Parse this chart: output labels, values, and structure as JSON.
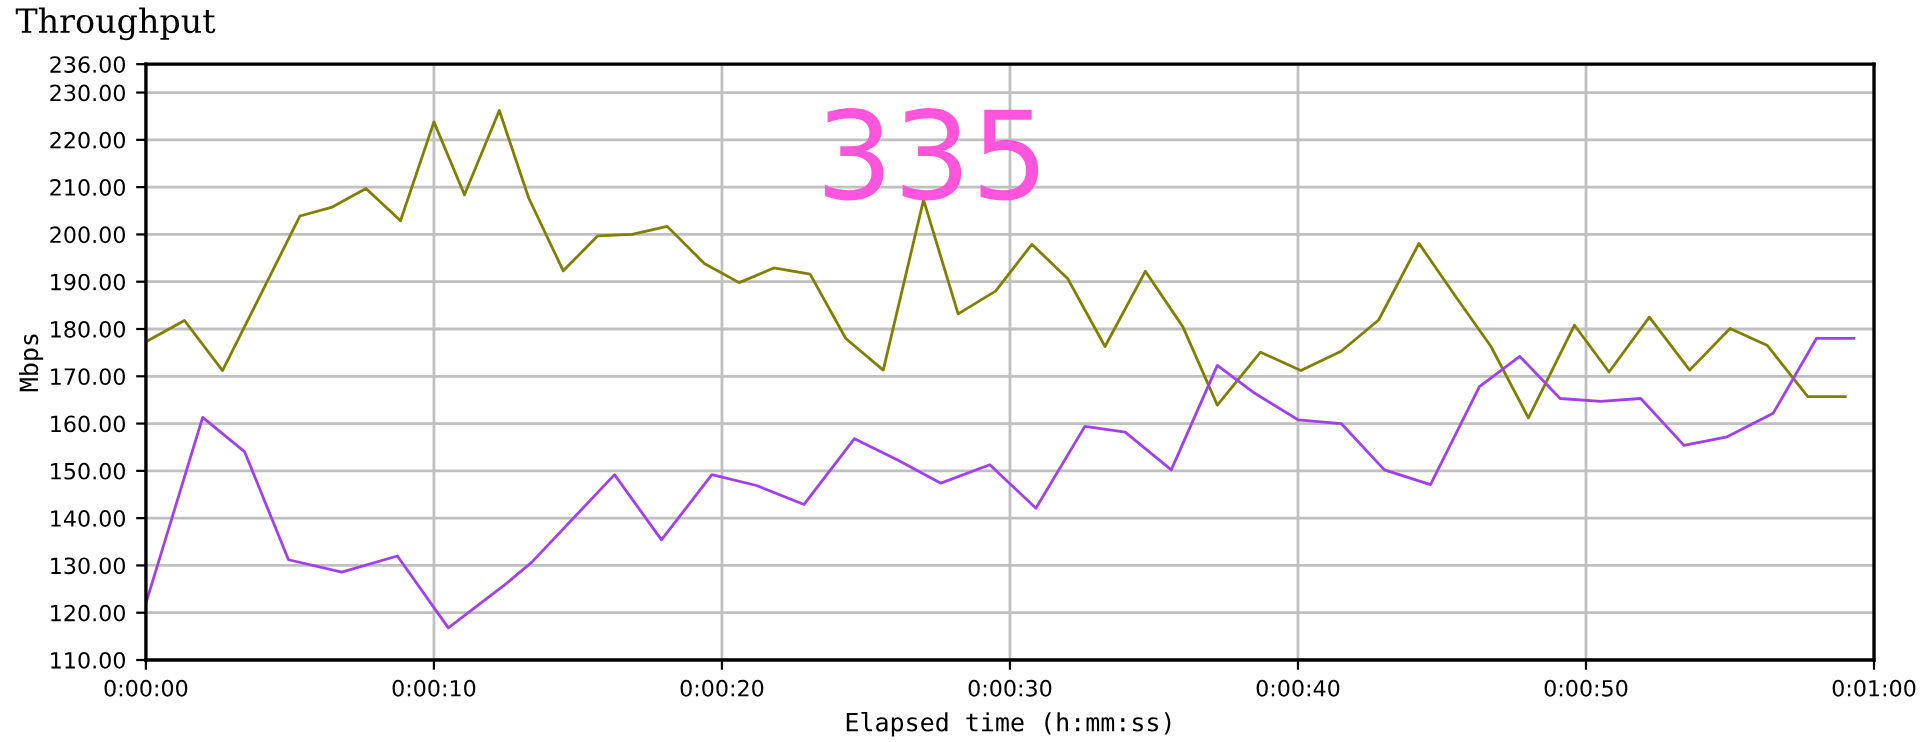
{
  "chart_data": {
    "type": "line",
    "title": "Throughput",
    "xlabel": "Elapsed time (h:mm:ss)",
    "ylabel": "Mbps",
    "annotations": [
      "335"
    ],
    "series": [
      {
        "color": "#808000",
        "x": [
          0,
          1.34,
          2.66,
          5.35,
          6.44,
          7.64,
          8.84,
          10.0,
          11.06,
          12.27,
          13.29,
          14.49,
          15.69,
          16.88,
          18.1,
          19.4,
          20.6,
          21.8,
          23.06,
          24.3,
          25.6,
          27.0,
          28.2,
          29.5,
          30.76,
          32.0,
          33.3,
          34.7,
          36.0,
          37.2,
          38.7,
          40.1,
          41.5,
          42.8,
          44.2,
          45.4,
          46.7,
          48.0,
          49.6,
          50.8,
          52.2,
          53.6,
          55.0,
          56.3,
          57.7,
          59.0
        ],
        "values": [
          177.3,
          181.8,
          171.2,
          203.9,
          205.7,
          209.7,
          202.9,
          223.8,
          208.4,
          226.2,
          207.7,
          192.3,
          199.7,
          200.0,
          201.7,
          193.8,
          189.8,
          192.9,
          191.6,
          178.0,
          171.3,
          207.3,
          183.2,
          188.0,
          197.9,
          190.7,
          176.3,
          192.2,
          180.5,
          163.9,
          175.1,
          171.2,
          175.3,
          181.9,
          198.1,
          187.5,
          176.3,
          161.2,
          180.8,
          170.9,
          182.5,
          171.3,
          180.1,
          176.5,
          165.7,
          165.7
        ]
      },
      {
        "color": "#a040f0",
        "x": [
          0,
          1.97,
          3.43,
          4.95,
          6.8,
          8.73,
          10.5,
          12.5,
          13.4,
          16.27,
          17.9,
          19.65,
          21.2,
          22.85,
          24.6,
          26.1,
          27.6,
          29.3,
          30.9,
          32.6,
          34.0,
          35.6,
          37.2,
          38.5,
          40.0,
          41.5,
          43.0,
          44.6,
          46.3,
          47.7,
          49.1,
          50.5,
          51.9,
          53.4,
          54.9,
          56.5,
          58.0,
          59.3
        ],
        "values": [
          122.0,
          161.3,
          154.0,
          131.2,
          128.6,
          132.0,
          116.8,
          126.1,
          130.7,
          149.2,
          135.4,
          149.2,
          146.9,
          142.9,
          156.8,
          152.3,
          147.4,
          151.3,
          142.1,
          159.4,
          158.2,
          150.2,
          172.3,
          166.4,
          160.8,
          160.0,
          150.2,
          147.1,
          167.8,
          174.2,
          165.3,
          164.7,
          165.3,
          155.4,
          157.2,
          162.2,
          178.0,
          178.0
        ]
      }
    ],
    "xlim": [
      0,
      60
    ],
    "xticks": [
      {
        "value": 0,
        "label": "0:00:00"
      },
      {
        "value": 10,
        "label": "0:00:10"
      },
      {
        "value": 20,
        "label": "0:00:20"
      },
      {
        "value": 30,
        "label": "0:00:30"
      },
      {
        "value": 40,
        "label": "0:00:40"
      },
      {
        "value": 50,
        "label": "0:00:50"
      },
      {
        "value": 60,
        "label": "0:01:00"
      }
    ],
    "ylim": [
      110,
      236
    ],
    "yticks": [
      {
        "value": 110,
        "label": "110.00"
      },
      {
        "value": 120,
        "label": "120.00"
      },
      {
        "value": 130,
        "label": "130.00"
      },
      {
        "value": 140,
        "label": "140.00"
      },
      {
        "value": 150,
        "label": "150.00"
      },
      {
        "value": 160,
        "label": "160.00"
      },
      {
        "value": 170,
        "label": "170.00"
      },
      {
        "value": 180,
        "label": "180.00"
      },
      {
        "value": 190,
        "label": "190.00"
      },
      {
        "value": 200,
        "label": "200.00"
      },
      {
        "value": 210,
        "label": "210.00"
      },
      {
        "value": 220,
        "label": "220.00"
      },
      {
        "value": 230,
        "label": "230.00"
      },
      {
        "value": 236,
        "label": "236.00"
      }
    ],
    "grid": true,
    "marker": "none",
    "line_style": "solid"
  }
}
